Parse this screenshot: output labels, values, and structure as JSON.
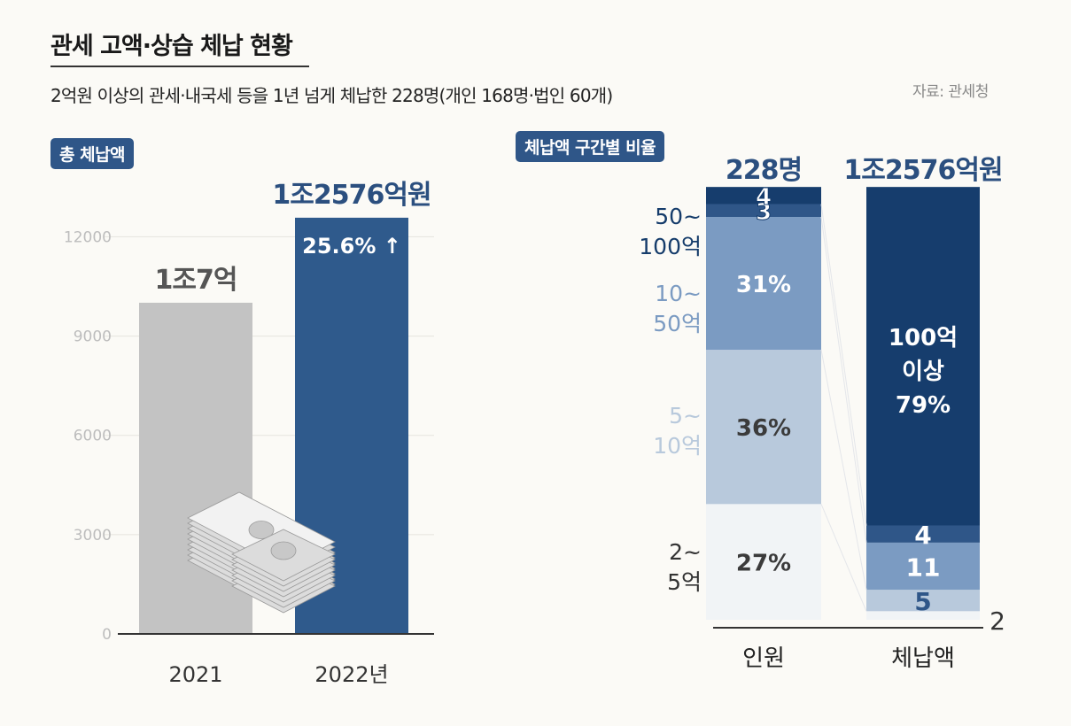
{
  "header": {
    "title": "관세 고액·상습 체납 현황",
    "subtitle": "2억원 이상의 관세·내국세 등을 1년 넘게 체납한 228명(개인 168명·법인 60개)",
    "source": "자료: 관세청"
  },
  "colors": {
    "gray_bar": "#c3c3c3",
    "blue_bar": "#2f5a8c",
    "navy": "#153c6b",
    "accent_text": "#2b4f7f",
    "seg_100plus": "#163d6d",
    "seg_50_100": "#2f5688",
    "seg_10_50": "#7b9bc2",
    "seg_5_10": "#b8c9dc",
    "seg_2_5": "#f1f4f6"
  },
  "chart_data": [
    {
      "type": "bar",
      "tag": "총 체납액",
      "categories": [
        "2021",
        "2022년"
      ],
      "values": [
        10007,
        12576
      ],
      "value_labels": [
        "1조7억",
        "1조2576억원"
      ],
      "annotation": "25.6% ↑",
      "yticks": [
        "0",
        "3000",
        "6000",
        "9000",
        "12000"
      ],
      "ylim": [
        0,
        12600
      ],
      "illustration": "money-bundle-icon"
    },
    {
      "type": "bar",
      "stacked": true,
      "tag": "체납액 구간별 비율",
      "categories": [
        "인원",
        "체납액"
      ],
      "category_totals": [
        "228명",
        "1조2576억원"
      ],
      "series": [
        {
          "name": "2~5억",
          "name_lines": [
            "2~",
            "5억"
          ],
          "values": [
            27,
            2
          ],
          "labels": [
            "27%",
            "2"
          ]
        },
        {
          "name": "5~10억",
          "name_lines": [
            "5~",
            "10억"
          ],
          "values": [
            36,
            5
          ],
          "labels": [
            "36%",
            "5"
          ]
        },
        {
          "name": "10~50억",
          "name_lines": [
            "10~",
            "50억"
          ],
          "values": [
            31,
            11
          ],
          "labels": [
            "31%",
            "11"
          ]
        },
        {
          "name": "50~100억",
          "name_lines": [
            "50~",
            "100억"
          ],
          "values": [
            3,
            4
          ],
          "labels": [
            "3",
            "4"
          ]
        },
        {
          "name": "100억 이상",
          "name_lines": [],
          "values": [
            4,
            79
          ],
          "labels": [
            "4",
            "100억|이상|79%"
          ]
        }
      ],
      "ylim": [
        0,
        100
      ]
    }
  ]
}
